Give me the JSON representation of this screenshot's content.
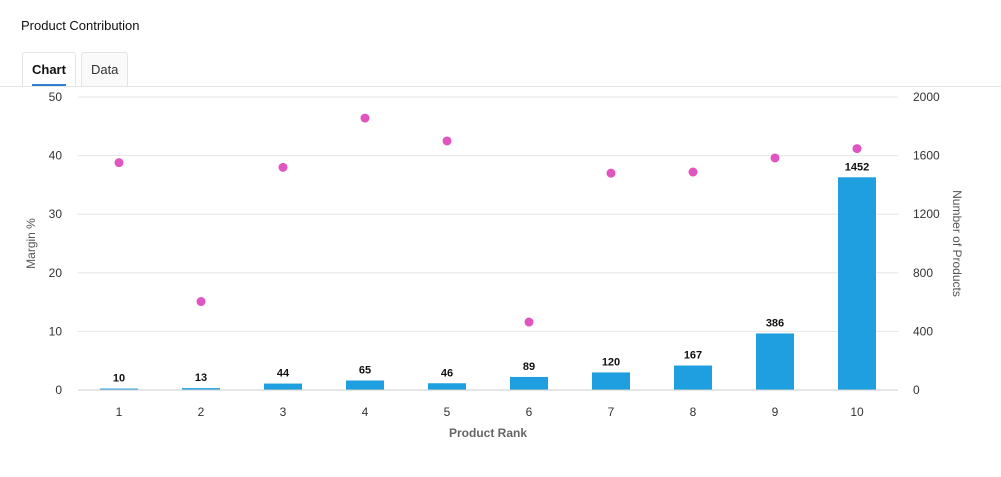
{
  "page_title": "Product Contribution",
  "tabs": [
    {
      "label": "Chart",
      "active": true
    },
    {
      "label": "Data",
      "active": false
    }
  ],
  "chart_data": {
    "type": "bar",
    "categories": [
      "1",
      "2",
      "3",
      "4",
      "5",
      "6",
      "7",
      "8",
      "9",
      "10"
    ],
    "xlabel": "Product Rank",
    "y_left": {
      "label": "Margin %",
      "range": [
        0,
        50
      ],
      "ticks": [
        0,
        10,
        20,
        30,
        40,
        50
      ]
    },
    "y_right": {
      "label": "Number of Products",
      "range": [
        0,
        2000
      ],
      "ticks": [
        0,
        400,
        800,
        1200,
        1600,
        2000
      ]
    },
    "grid": true,
    "series": [
      {
        "kind": "bar",
        "axis": "right",
        "color": "#1f9fe0",
        "values": [
          10,
          13,
          44,
          65,
          46,
          89,
          120,
          167,
          386,
          1452
        ]
      },
      {
        "kind": "scatter",
        "axis": "left",
        "color": "#e055c0",
        "values": [
          38.8,
          15.1,
          38.0,
          46.4,
          42.5,
          11.6,
          37.0,
          37.2,
          39.6,
          41.2
        ]
      }
    ]
  }
}
